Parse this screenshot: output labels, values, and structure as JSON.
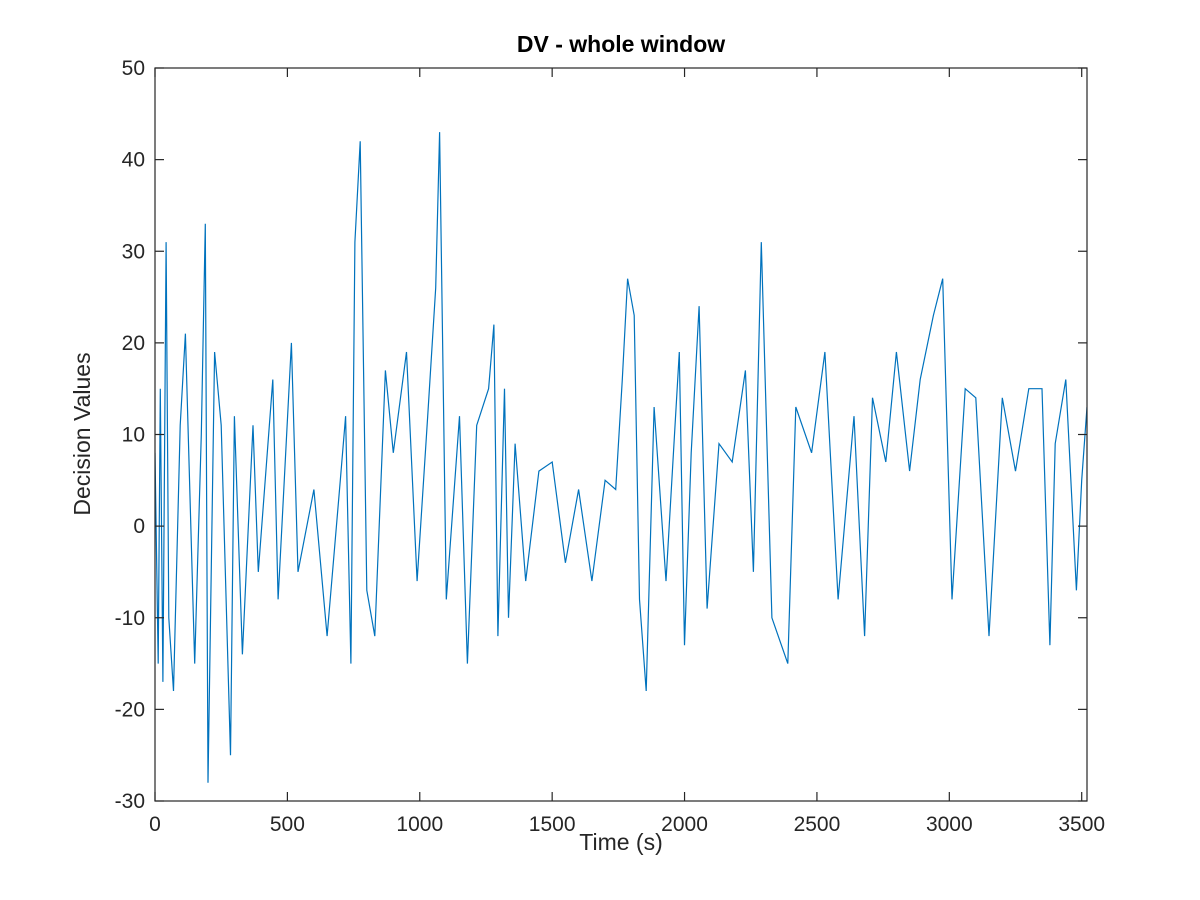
{
  "chart_data": {
    "type": "line",
    "title": "DV - whole window",
    "xlabel": "Time (s)",
    "ylabel": "Decision Values",
    "xlim": [
      0,
      3520
    ],
    "ylim": [
      -30,
      50
    ],
    "xticks": [
      0,
      500,
      1000,
      1500,
      2000,
      2500,
      3000,
      3500
    ],
    "yticks": [
      -30,
      -20,
      -10,
      0,
      10,
      20,
      30,
      40,
      50
    ],
    "grid": false,
    "legend": "none",
    "colors": {
      "series": "#0072bd",
      "axes": "#262626"
    },
    "series": [
      {
        "x": [
          0,
          12,
          20,
          30,
          42,
          52,
          70,
          95,
          115,
          150,
          175,
          190,
          200,
          225,
          250,
          285,
          300,
          330,
          370,
          390,
          445,
          465,
          515,
          540,
          600,
          650,
          700,
          720,
          740,
          755,
          775,
          800,
          830,
          870,
          900,
          950,
          990,
          1030,
          1060,
          1075,
          1100,
          1150,
          1180,
          1215,
          1260,
          1280,
          1295,
          1320,
          1335,
          1360,
          1400,
          1450,
          1500,
          1550,
          1600,
          1650,
          1700,
          1740,
          1765,
          1785,
          1810,
          1830,
          1855,
          1885,
          1930,
          1980,
          2000,
          2025,
          2055,
          2085,
          2130,
          2180,
          2230,
          2260,
          2290,
          2330,
          2390,
          2420,
          2480,
          2530,
          2580,
          2640,
          2680,
          2710,
          2760,
          2800,
          2850,
          2890,
          2940,
          2975,
          3010,
          3060,
          3100,
          3150,
          3200,
          3250,
          3300,
          3350,
          3380,
          3400,
          3440,
          3480,
          3500,
          3520
        ],
        "y": [
          8,
          -15,
          15,
          -17,
          31,
          -10,
          -18,
          11,
          21,
          -15,
          10,
          33,
          -28,
          19,
          11,
          -25,
          12,
          -14,
          11,
          -5,
          16,
          -8,
          20,
          -5,
          4,
          -12,
          5,
          12,
          -15,
          31,
          42,
          -7,
          -12,
          17,
          8,
          19,
          -6,
          12,
          26,
          43,
          -8,
          12,
          -15,
          11,
          15,
          22,
          -12,
          15,
          -10,
          9,
          -6,
          6,
          7,
          -4,
          4,
          -6,
          5,
          4,
          16,
          27,
          23,
          -8,
          -18,
          13,
          -6,
          19,
          -13,
          8,
          24,
          -9,
          9,
          7,
          17,
          -5,
          31,
          -10,
          -15,
          13,
          8,
          19,
          -8,
          12,
          -12,
          14,
          7,
          19,
          6,
          16,
          23,
          27,
          -8,
          15,
          14,
          -12,
          14,
          6,
          15,
          15,
          -13,
          9,
          16,
          -7,
          5,
          13
        ]
      }
    ]
  }
}
